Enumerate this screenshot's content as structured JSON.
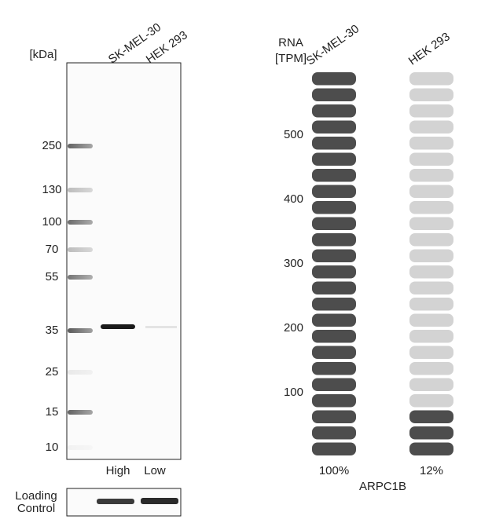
{
  "western_blot": {
    "unit_label": "[kDa]",
    "lanes": [
      "SK-MEL-30",
      "HEK 293"
    ],
    "markers": [
      250,
      130,
      100,
      70,
      55,
      35,
      25,
      15,
      10
    ],
    "lane_levels": [
      "High",
      "Low"
    ],
    "loading_control": [
      "Loading",
      "Control"
    ]
  },
  "rna": {
    "axis_label": [
      "RNA",
      "[TPM]"
    ],
    "ylim": [
      0,
      600
    ],
    "yticks": [
      100,
      200,
      300,
      400,
      500
    ],
    "cell_lines": [
      "SK-MEL-30",
      "HEK 293"
    ],
    "values": [
      100,
      12
    ],
    "value_labels": [
      "100%",
      "12%"
    ],
    "colors": [
      "#4d4d4d",
      "#d3d3d3"
    ],
    "gene": "ARPC1B"
  }
}
